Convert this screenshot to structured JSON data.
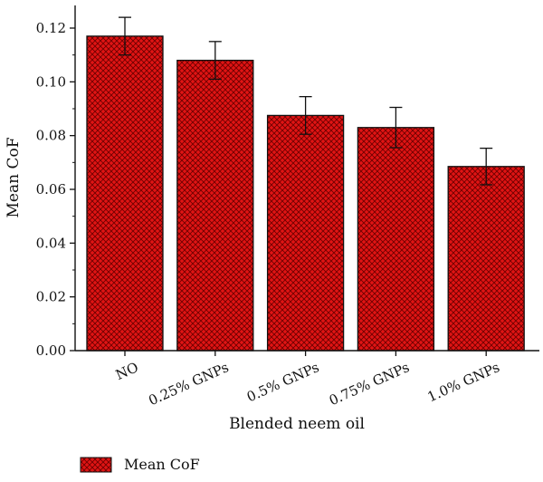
{
  "chart_data": {
    "type": "bar",
    "xlabel": "Blended neem oil",
    "ylabel": "Mean CoF",
    "ylim": [
      0,
      0.12
    ],
    "yticks": [
      "0.00",
      "0.02",
      "0.04",
      "0.06",
      "0.08",
      "0.10",
      "0.12"
    ],
    "categories": [
      "NO",
      "0.25% GNPs",
      "0.5% GNPs",
      "0.75% GNPs",
      "1.0% GNPs"
    ],
    "series": [
      {
        "name": "Mean CoF",
        "values": [
          0.117,
          0.108,
          0.0875,
          0.083,
          0.0685
        ],
        "errors": [
          0.007,
          0.007,
          0.007,
          0.0075,
          0.0068
        ]
      }
    ],
    "bar_fill": "#e01414",
    "bar_pattern": "crosshatch",
    "grid": false,
    "legend_position": "bottom-left"
  }
}
